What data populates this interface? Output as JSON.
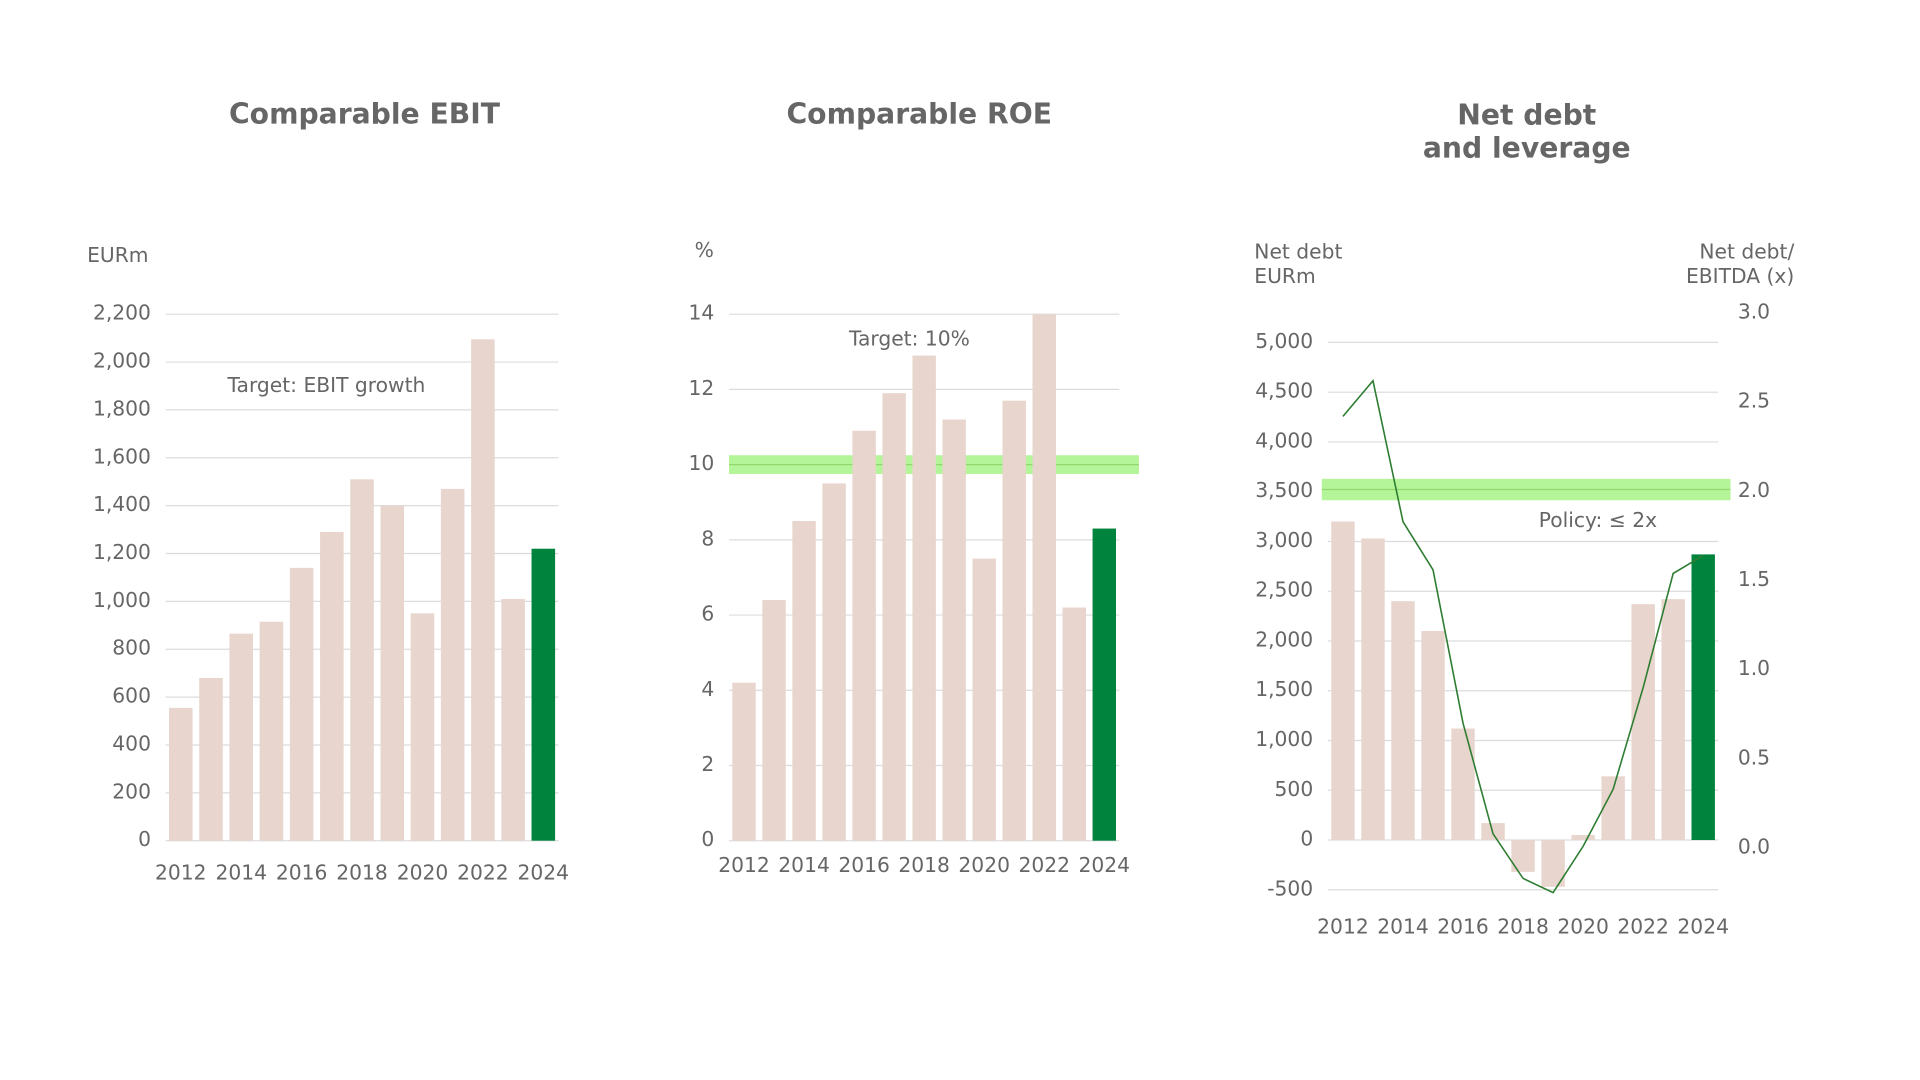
{
  "chart_data": [
    {
      "type": "bar",
      "title": "Comparable EBIT",
      "y_label": "EURm",
      "annotation": "Target: EBIT growth",
      "categories": [
        "2012",
        null,
        "2014",
        null,
        "2016",
        null,
        "2018",
        null,
        "2020",
        null,
        "2022",
        null,
        "2024"
      ],
      "values": [
        555,
        680,
        865,
        915,
        1140,
        1290,
        1510,
        1400,
        950,
        1470,
        2095,
        1010,
        1220
      ],
      "colors": [
        "#e8d5cd",
        "#e8d5cd",
        "#e8d5cd",
        "#e8d5cd",
        "#e8d5cd",
        "#e8d5cd",
        "#e8d5cd",
        "#e8d5cd",
        "#e8d5cd",
        "#e8d5cd",
        "#e8d5cd",
        "#e8d5cd",
        "#00843d"
      ],
      "ylim": [
        0,
        2200
      ],
      "yticks": [
        0,
        200,
        400,
        600,
        800,
        {
          "value": 1000,
          "label": "1,000"
        },
        {
          "value": 1200,
          "label": "1,200"
        },
        {
          "value": 1400,
          "label": "1,400"
        },
        {
          "value": 1600,
          "label": "1,600"
        },
        {
          "value": 1800,
          "label": "1,800"
        },
        {
          "value": 2000,
          "label": "2,000"
        },
        {
          "value": 2200,
          "label": "2,200"
        }
      ],
      "grid": true
    },
    {
      "type": "bar",
      "title": "Comparable ROE",
      "y_label": "%",
      "annotation": "Target: 10%",
      "categories": [
        "2012",
        null,
        "2014",
        null,
        "2016",
        null,
        "2018",
        null,
        "2020",
        null,
        "2022",
        null,
        "2024"
      ],
      "values": [
        4.2,
        6.4,
        8.5,
        9.5,
        10.9,
        11.9,
        12.9,
        11.2,
        7.5,
        11.7,
        14.0,
        6.2,
        8.3
      ],
      "colors": [
        "#e8d5cd",
        "#e8d5cd",
        "#e8d5cd",
        "#e8d5cd",
        "#e8d5cd",
        "#e8d5cd",
        "#e8d5cd",
        "#e8d5cd",
        "#e8d5cd",
        "#e8d5cd",
        "#e8d5cd",
        "#e8d5cd",
        "#00843d"
      ],
      "ylim": [
        0,
        14
      ],
      "yticks": [
        0,
        2,
        4,
        6,
        8,
        10,
        12,
        14
      ],
      "grid": true,
      "target_band": {
        "range": [
          9.75,
          10.25
        ],
        "color": "#b5f59a"
      }
    },
    {
      "type": "bar",
      "title": [
        "Net debt",
        "and leverage"
      ],
      "y_label": [
        "Net debt",
        "EURm"
      ],
      "y2_label": [
        "Net debt/",
        "EBITDA (x)"
      ],
      "annotation": "Policy: ≤ 2x",
      "categories": [
        "2012",
        null,
        "2014",
        null,
        "2016",
        null,
        "2018",
        null,
        "2020",
        null,
        "2022",
        null,
        "2024"
      ],
      "series": [
        {
          "values": [
            3200,
            3030,
            2400,
            2100,
            1120,
            170,
            -320,
            -470,
            50,
            640,
            2370,
            2420,
            2870
          ],
          "colors": [
            "#e8d5cd",
            "#e8d5cd",
            "#e8d5cd",
            "#e8d5cd",
            "#e8d5cd",
            "#e8d5cd",
            "#e8d5cd",
            "#e8d5cd",
            "#e8d5cd",
            "#e8d5cd",
            "#e8d5cd",
            "#e8d5cd",
            "#00843d"
          ]
        },
        {
          "type": "line",
          "axis": "y2",
          "color": "#2e7d32",
          "values": [
            2.42,
            2.62,
            1.83,
            1.56,
            0.7,
            0.08,
            -0.17,
            -0.25,
            0.01,
            0.33,
            0.9,
            1.54,
            1.64
          ]
        }
      ],
      "ylim": [
        -500,
        5000
      ],
      "yticks": [
        -500,
        0,
        500,
        {
          "value": 1000,
          "label": "1,000"
        },
        {
          "value": 1500,
          "label": "1,500"
        },
        {
          "value": 2000,
          "label": "2,000"
        },
        {
          "value": 2500,
          "label": "2,500"
        },
        {
          "value": 3000,
          "label": "3,000"
        },
        {
          "value": 3500,
          "label": "3,500"
        },
        {
          "value": 4000,
          "label": "4,000"
        },
        {
          "value": 4500,
          "label": "4,500"
        },
        {
          "value": 5000,
          "label": "5,000"
        }
      ],
      "y2lim": [
        0,
        3.0
      ],
      "y2ticks": [
        {
          "value": 0,
          "label": "0.0"
        },
        0.5,
        {
          "value": 1,
          "label": "1.0"
        },
        1.5,
        {
          "value": 2,
          "label": "2.0"
        },
        2.5,
        {
          "value": 3,
          "label": "3.0"
        }
      ],
      "grid": true,
      "target_band": {
        "range": [
          1.95,
          2.07
        ],
        "color": "#b5f59a",
        "axis": "y2"
      }
    }
  ]
}
